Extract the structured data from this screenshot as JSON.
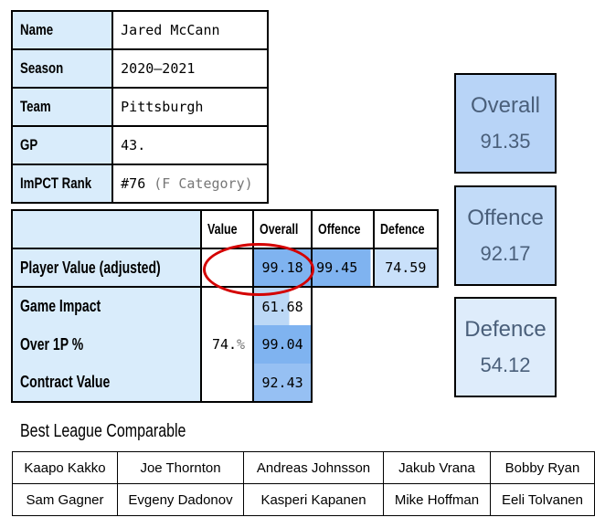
{
  "info": [
    {
      "label": "Name",
      "value": "Jared McCann",
      "suffix": ""
    },
    {
      "label": "Season",
      "value": "2020–2021",
      "suffix": ""
    },
    {
      "label": "Team",
      "value": "Pittsburgh",
      "suffix": ""
    },
    {
      "label": "GP",
      "value": "43.",
      "suffix": ""
    },
    {
      "label": "ImPCT Rank",
      "value": "#76 ",
      "suffix": "(F Category)"
    }
  ],
  "value_table": {
    "headers": {
      "value": "Value",
      "overall": "Overall",
      "offence": "Offence",
      "defence": "Defence"
    },
    "player_value": {
      "label": "Player Value (adjusted)",
      "overall": "99.18",
      "offence": "99.45",
      "defence": "74.59"
    },
    "rows": [
      {
        "label": "Game Impact",
        "overall": "61.68"
      },
      {
        "label": "Over 1P %",
        "overall": "99.04"
      },
      {
        "label": "Contract Value",
        "overall": "92.43"
      }
    ],
    "value_main": "74.",
    "value_unit": "%"
  },
  "scores": [
    {
      "title": "Overall",
      "value": "91.35",
      "color": "#b8d4f7"
    },
    {
      "title": "Offence",
      "value": "92.17",
      "color": "#c2dbf8"
    },
    {
      "title": "Defence",
      "value": "54.12",
      "color": "#deecfb"
    }
  ],
  "comparables": {
    "title": "Best League Comparable",
    "rows": [
      [
        "Kaapo Kakko",
        "Joe Thornton",
        "Andreas Johnsson",
        "Jakub Vrana",
        "Bobby Ryan"
      ],
      [
        "Sam Gagner",
        "Evgeny Dadonov",
        "Kasperi Kapanen",
        "Mike Hoffman",
        "Eeli Tolvanen"
      ]
    ]
  },
  "colors": {
    "label_bg": "#d9ecfb",
    "highlight": "#bcd8f6",
    "strong": "#7fb3f0",
    "annotation": "#d40000"
  }
}
